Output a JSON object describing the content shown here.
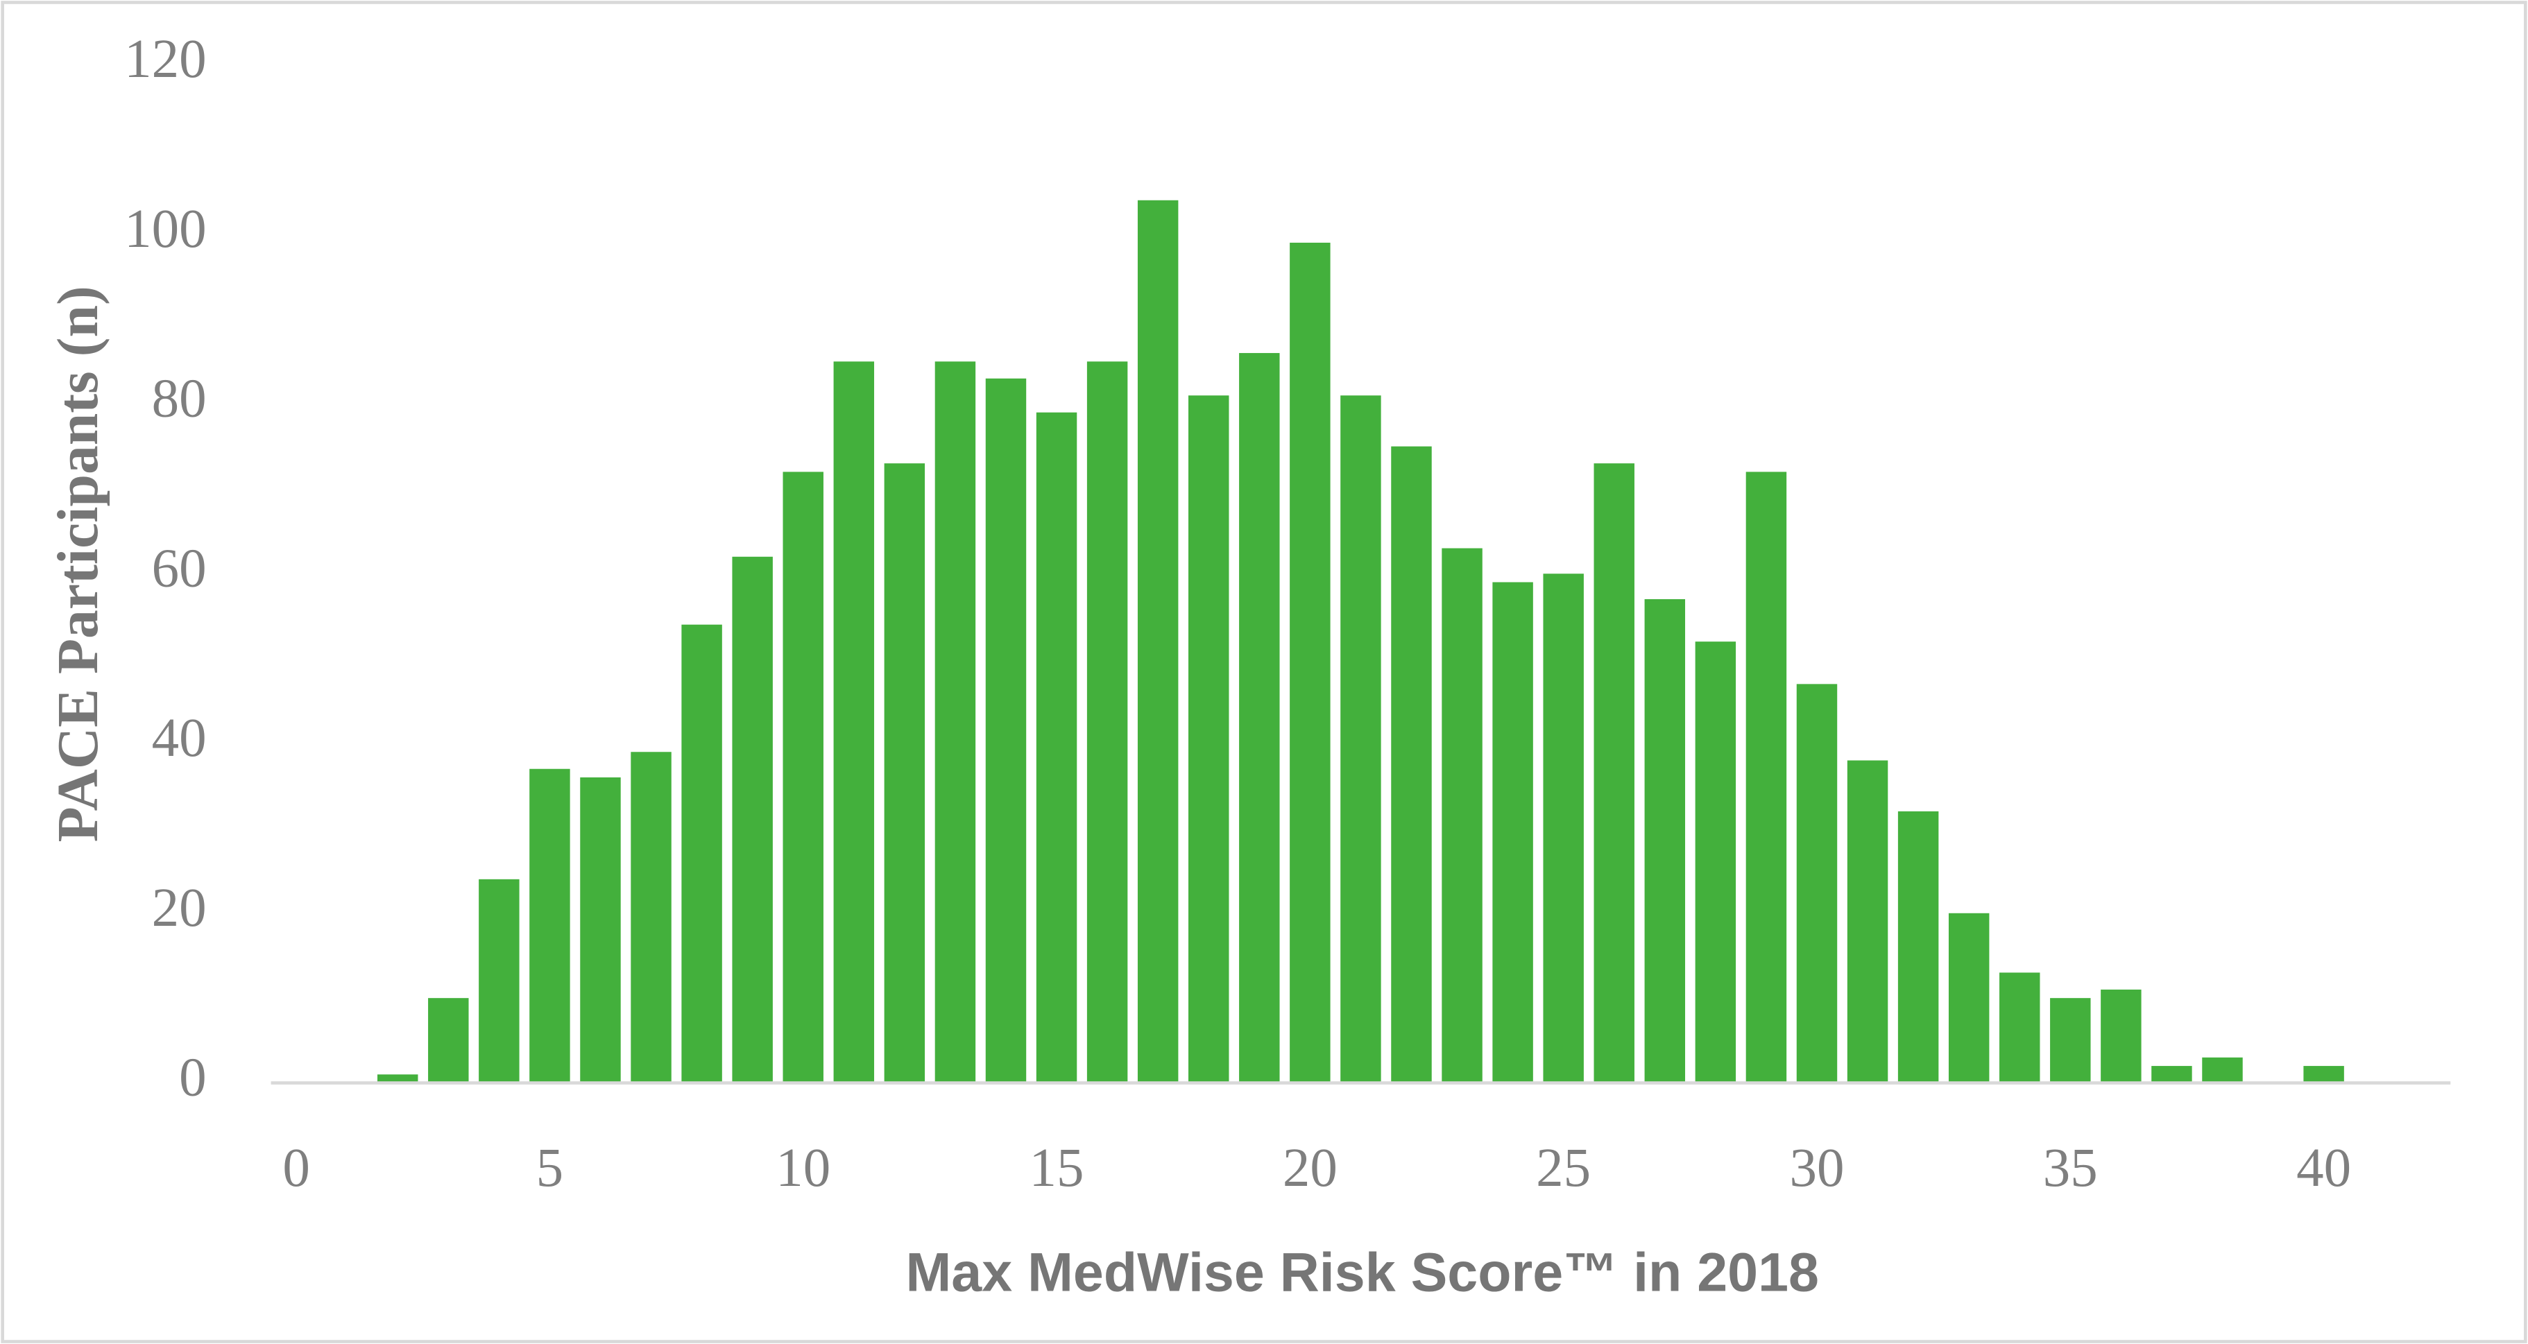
{
  "chart_data": {
    "type": "bar",
    "x_label": "Max MedWise Risk Score™ in 2018",
    "y_label": "PACE Participants (n)",
    "categories": [
      "0",
      null,
      null,
      null,
      null,
      "5",
      null,
      null,
      null,
      null,
      "10",
      null,
      null,
      null,
      null,
      "15",
      null,
      null,
      null,
      null,
      "20",
      null,
      null,
      null,
      null,
      "25",
      null,
      null,
      null,
      null,
      "30",
      null,
      null,
      null,
      null,
      "35",
      null,
      null,
      null,
      null,
      "40",
      null,
      null
    ],
    "values": [
      0,
      0,
      1,
      10,
      24,
      37,
      36,
      39,
      54,
      62,
      72,
      85,
      73,
      85,
      83,
      79,
      85,
      104,
      81,
      86,
      99,
      81,
      75,
      63,
      59,
      60,
      73,
      57,
      52,
      72,
      47,
      38,
      32,
      20,
      13,
      10,
      11,
      2,
      3,
      0,
      2,
      0,
      0
    ],
    "color": "#43b03c",
    "ylim": [
      0,
      120
    ],
    "yticks": [
      0,
      20,
      40,
      60,
      80,
      100,
      120
    ],
    "grid": false
  }
}
